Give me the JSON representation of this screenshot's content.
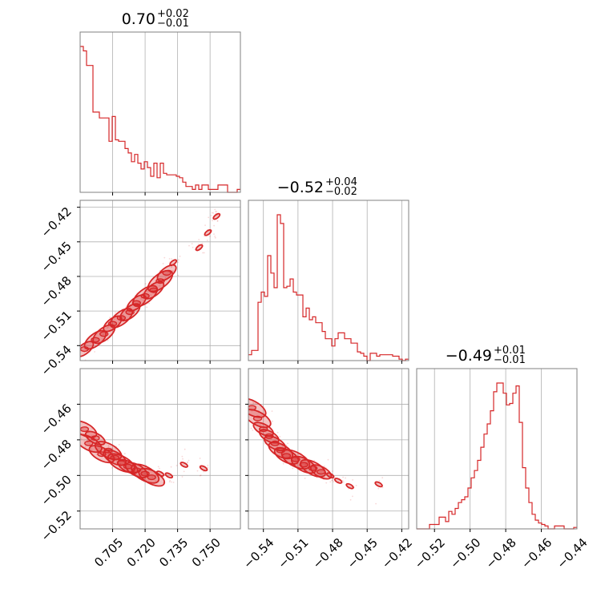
{
  "chart_data": {
    "type": "corner",
    "color": "#d62728",
    "parameters": [
      {
        "median": "0.70",
        "plus": "+0.02",
        "minus": "−0.01",
        "range": [
          0.69,
          0.764
        ],
        "ticks": [
          0.705,
          0.72,
          0.735,
          0.75
        ],
        "tick_labels": [
          "0.705",
          "0.720",
          "0.735",
          "0.750"
        ]
      },
      {
        "median": "−0.52",
        "plus": "+0.04",
        "minus": "−0.02",
        "range": [
          -0.553,
          -0.414
        ],
        "ticks": [
          -0.54,
          -0.51,
          -0.48,
          -0.45,
          -0.42
        ],
        "tick_labels": [
          "−0.54",
          "−0.51",
          "−0.48",
          "−0.45",
          "−0.42"
        ]
      },
      {
        "median": "−0.49",
        "plus": "+0.01",
        "minus": "−0.01",
        "range": [
          -0.53,
          -0.44
        ],
        "ticks": [
          -0.52,
          -0.5,
          -0.48,
          -0.46,
          -0.44
        ],
        "tick_labels": [
          "−0.52",
          "−0.50",
          "−0.48",
          "−0.46",
          "−0.44"
        ]
      }
    ],
    "histograms": [
      [
        1.0,
        0.97,
        0.87,
        0.87,
        0.55,
        0.55,
        0.51,
        0.51,
        0.51,
        0.35,
        0.52,
        0.36,
        0.35,
        0.35,
        0.3,
        0.27,
        0.21,
        0.26,
        0.2,
        0.16,
        0.21,
        0.17,
        0.11,
        0.2,
        0.1,
        0.2,
        0.13,
        0.12,
        0.12,
        0.12,
        0.11,
        0.1,
        0.07,
        0.04,
        0.04,
        0.02,
        0.05,
        0.02,
        0.05,
        0.05,
        0.02,
        0.02,
        0.02,
        0.05,
        0.05,
        0.05,
        0.0,
        0.0,
        0.0,
        0.02
      ],
      [
        0.04,
        0.07,
        0.07,
        0.4,
        0.47,
        0.44,
        0.72,
        0.6,
        0.5,
        1.0,
        0.94,
        0.5,
        0.51,
        0.56,
        0.47,
        0.45,
        0.45,
        0.3,
        0.36,
        0.28,
        0.3,
        0.26,
        0.26,
        0.2,
        0.15,
        0.15,
        0.1,
        0.15,
        0.19,
        0.19,
        0.15,
        0.15,
        0.12,
        0.12,
        0.06,
        0.05,
        0.03,
        0.0,
        0.05,
        0.05,
        0.03,
        0.04,
        0.04,
        0.04,
        0.04,
        0.03,
        0.03,
        0.01,
        0.0,
        0.01
      ],
      [
        0.0,
        0.0,
        0.0,
        0.0,
        0.03,
        0.03,
        0.03,
        0.08,
        0.08,
        0.05,
        0.12,
        0.1,
        0.14,
        0.18,
        0.2,
        0.22,
        0.28,
        0.35,
        0.4,
        0.47,
        0.56,
        0.65,
        0.72,
        0.81,
        0.94,
        1.0,
        1.0,
        0.93,
        0.85,
        0.86,
        0.93,
        0.98,
        0.73,
        0.42,
        0.28,
        0.18,
        0.1,
        0.06,
        0.04,
        0.03,
        0.02,
        0.0,
        0.0,
        0.02,
        0.02,
        0.02,
        0.0,
        0.0,
        0.0,
        0.01
      ]
    ],
    "scatter_pairs": [
      {
        "x_param": 0,
        "y_param": 1,
        "relation": "positive",
        "center": [
          0.718,
          -0.5
        ],
        "points": [
          [
            0.692,
            -0.543
          ],
          [
            0.697,
            -0.535
          ],
          [
            0.701,
            -0.53
          ],
          [
            0.705,
            -0.521
          ],
          [
            0.709,
            -0.516
          ],
          [
            0.713,
            -0.511
          ],
          [
            0.716,
            -0.503
          ],
          [
            0.72,
            -0.497
          ],
          [
            0.724,
            -0.492
          ],
          [
            0.727,
            -0.484
          ],
          [
            0.73,
            -0.477
          ],
          [
            0.733,
            -0.468
          ],
          [
            0.745,
            -0.455
          ],
          [
            0.749,
            -0.442
          ],
          [
            0.753,
            -0.428
          ]
        ]
      },
      {
        "x_param": 0,
        "y_param": 2,
        "relation": "negative",
        "center": [
          0.708,
          -0.485
        ],
        "points": [
          [
            0.692,
            -0.474
          ],
          [
            0.694,
            -0.482
          ],
          [
            0.697,
            -0.479
          ],
          [
            0.7,
            -0.488
          ],
          [
            0.703,
            -0.486
          ],
          [
            0.706,
            -0.49
          ],
          [
            0.709,
            -0.493
          ],
          [
            0.712,
            -0.495
          ],
          [
            0.716,
            -0.497
          ],
          [
            0.72,
            -0.499
          ],
          [
            0.723,
            -0.501
          ],
          [
            0.727,
            -0.499
          ],
          [
            0.731,
            -0.5
          ],
          [
            0.738,
            -0.494
          ],
          [
            0.747,
            -0.496
          ]
        ]
      },
      {
        "x_param": 1,
        "y_param": 2,
        "relation": "negative",
        "center": [
          -0.51,
          -0.49
        ],
        "points": [
          [
            -0.55,
            -0.462
          ],
          [
            -0.545,
            -0.468
          ],
          [
            -0.54,
            -0.474
          ],
          [
            -0.535,
            -0.478
          ],
          [
            -0.53,
            -0.482
          ],
          [
            -0.525,
            -0.486
          ],
          [
            -0.52,
            -0.489
          ],
          [
            -0.512,
            -0.491
          ],
          [
            -0.505,
            -0.494
          ],
          [
            -0.497,
            -0.496
          ],
          [
            -0.49,
            -0.498
          ],
          [
            -0.482,
            -0.5
          ],
          [
            -0.475,
            -0.503
          ],
          [
            -0.465,
            -0.506
          ],
          [
            -0.44,
            -0.505
          ]
        ]
      }
    ]
  }
}
